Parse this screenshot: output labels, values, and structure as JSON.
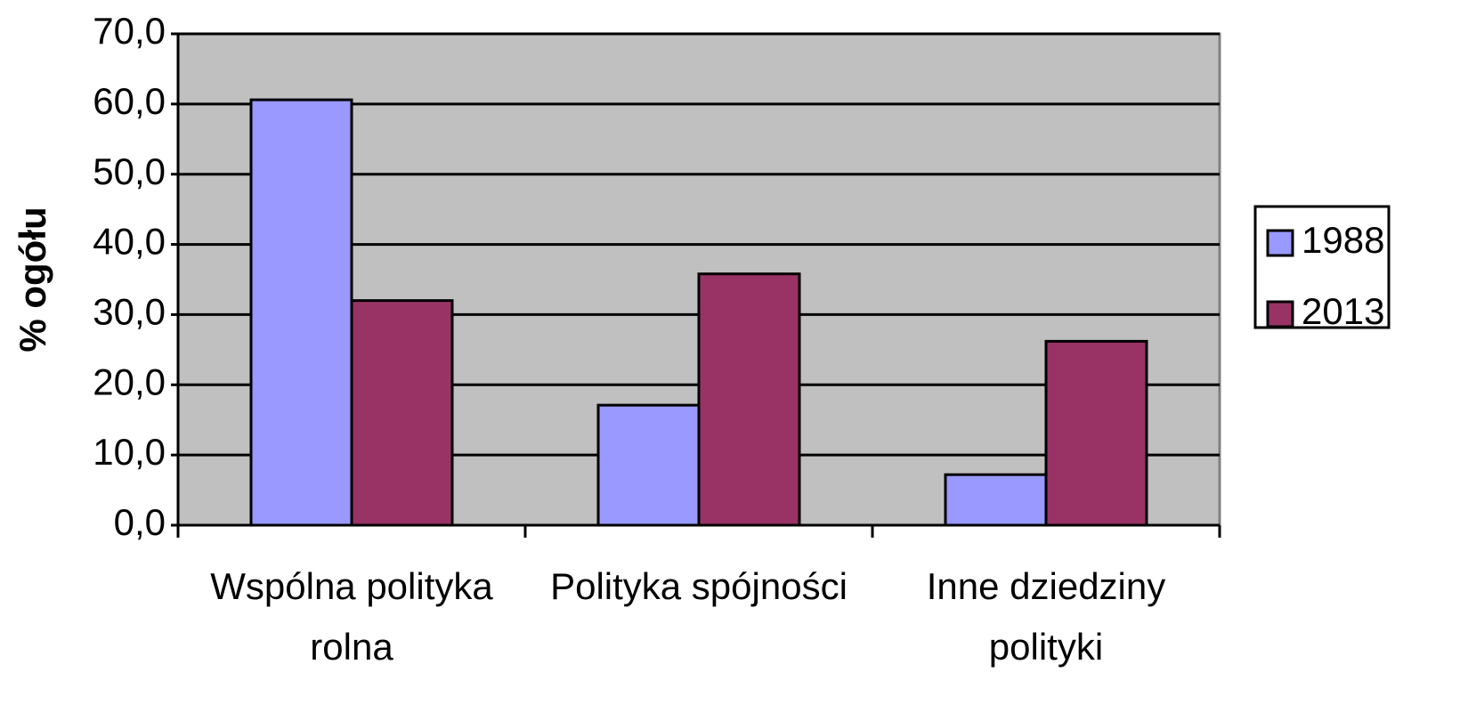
{
  "chart_data": {
    "type": "bar",
    "y_label": "% ogółu",
    "categories": [
      "Wspólna polityka rolna",
      "Polityka spójności",
      "Inne dziedziny polityki"
    ],
    "series": [
      {
        "name": "1988",
        "color": "#9999ff",
        "values": [
          60.6,
          17.1,
          7.2
        ]
      },
      {
        "name": "2013",
        "color": "#993366",
        "values": [
          32.0,
          35.8,
          26.2
        ]
      }
    ],
    "ylim": [
      0,
      70
    ],
    "yticks": [
      {
        "value": 0,
        "label": "0,0"
      },
      {
        "value": 10,
        "label": "10,0"
      },
      {
        "value": 20,
        "label": "20,0"
      },
      {
        "value": 30,
        "label": "30,0"
      },
      {
        "value": 40,
        "label": "40,0"
      },
      {
        "value": 50,
        "label": "50,0"
      },
      {
        "value": 60,
        "label": "60,0"
      },
      {
        "value": 70,
        "label": "70,0"
      }
    ],
    "grid": true,
    "legend": "right"
  }
}
